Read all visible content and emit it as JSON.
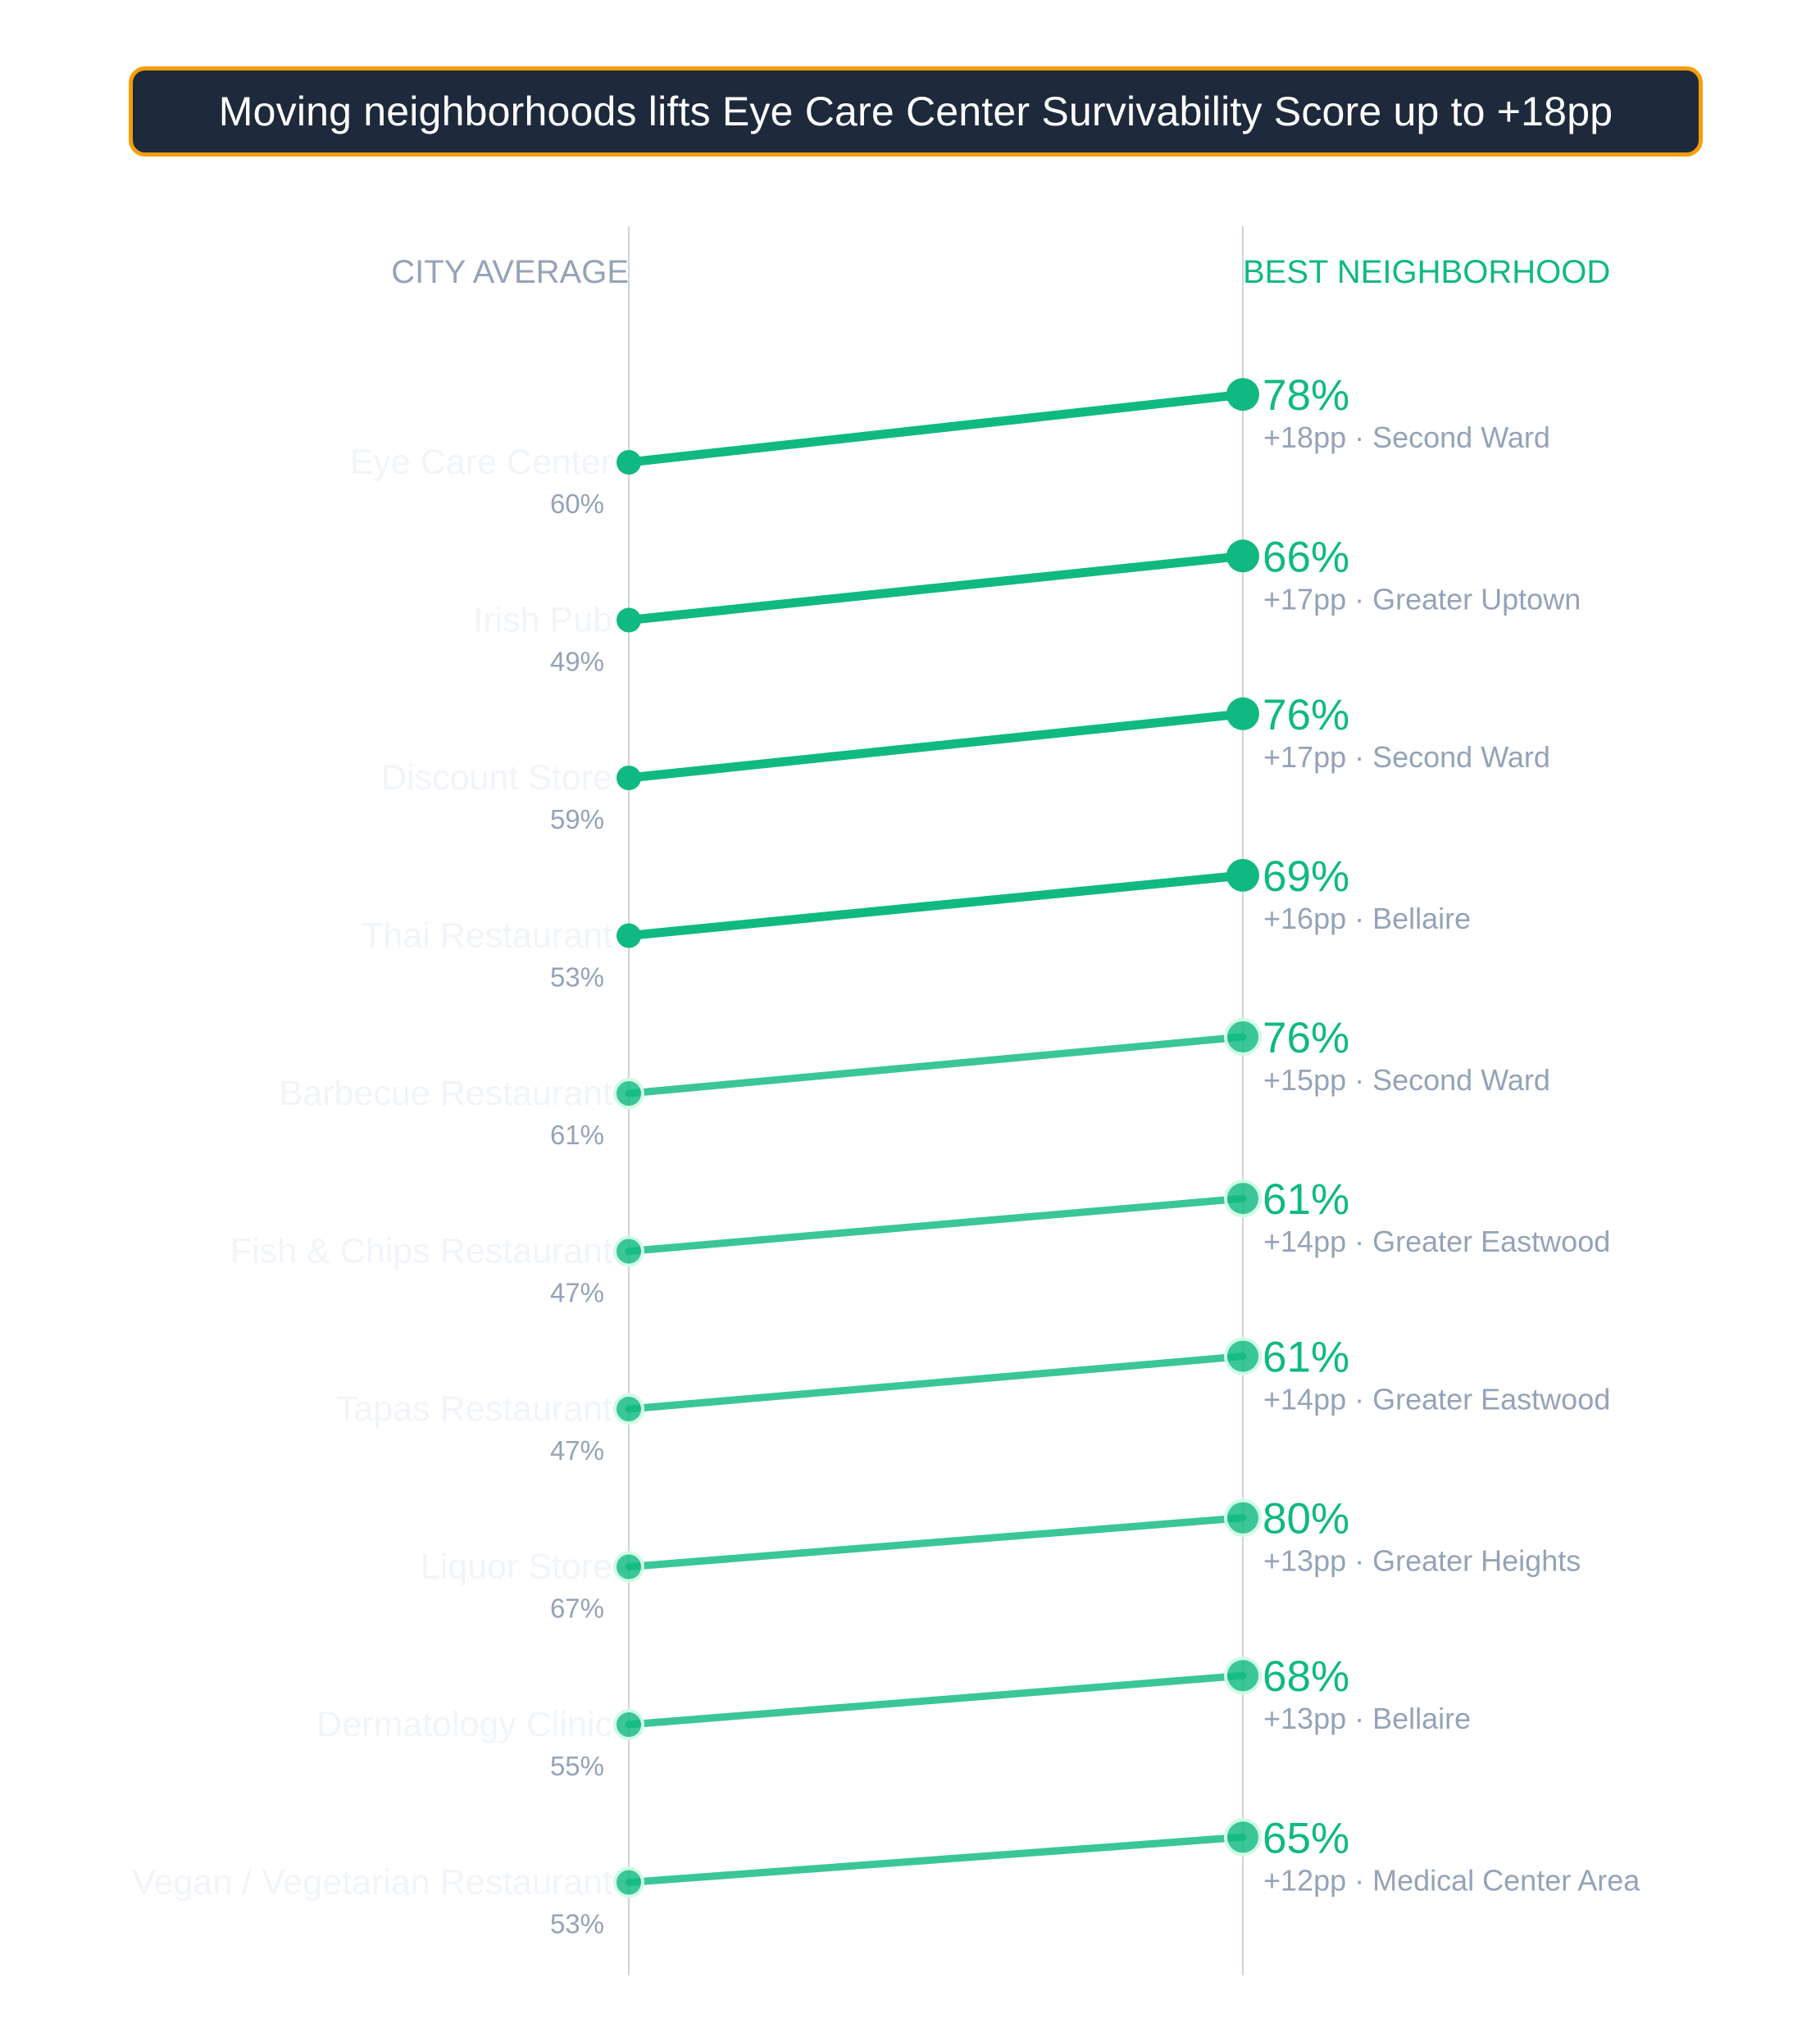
{
  "title": "Moving neighborhoods lifts Eye Care Center Survivability Score up to +18pp",
  "colors": {
    "accent": "#10b981",
    "title_bg": "#1e293b",
    "title_border": "#f59e0b",
    "muted": "#94a3b8",
    "axis": "#cbd5e1"
  },
  "chart_data": {
    "type": "slope",
    "left_label": "CITY AVERAGE",
    "right_label": "BEST NEIGHBORHOOD",
    "value_unit": "%",
    "rows": [
      {
        "category": "Eye Care Center",
        "city_average": 60,
        "best_neighborhood": 78,
        "delta": "+18pp",
        "neighborhood": "Second Ward"
      },
      {
        "category": "Irish Pub",
        "city_average": 49,
        "best_neighborhood": 66,
        "delta": "+17pp",
        "neighborhood": "Greater Uptown"
      },
      {
        "category": "Discount Store",
        "city_average": 59,
        "best_neighborhood": 76,
        "delta": "+17pp",
        "neighborhood": "Second Ward"
      },
      {
        "category": "Thai Restaurant",
        "city_average": 53,
        "best_neighborhood": 69,
        "delta": "+16pp",
        "neighborhood": "Bellaire"
      },
      {
        "category": "Barbecue Restaurant",
        "city_average": 61,
        "best_neighborhood": 76,
        "delta": "+15pp",
        "neighborhood": "Second Ward"
      },
      {
        "category": "Fish & Chips Restaurant",
        "city_average": 47,
        "best_neighborhood": 61,
        "delta": "+14pp",
        "neighborhood": "Greater Eastwood"
      },
      {
        "category": "Tapas Restaurant",
        "city_average": 47,
        "best_neighborhood": 61,
        "delta": "+14pp",
        "neighborhood": "Greater Eastwood"
      },
      {
        "category": "Liquor Store",
        "city_average": 67,
        "best_neighborhood": 80,
        "delta": "+13pp",
        "neighborhood": "Greater Heights"
      },
      {
        "category": "Dermatology Clinic",
        "city_average": 55,
        "best_neighborhood": 68,
        "delta": "+13pp",
        "neighborhood": "Bellaire"
      },
      {
        "category": "Vegan / Vegetarian Restaurant",
        "city_average": 53,
        "best_neighborhood": 65,
        "delta": "+12pp",
        "neighborhood": "Medical Center Area"
      }
    ]
  }
}
